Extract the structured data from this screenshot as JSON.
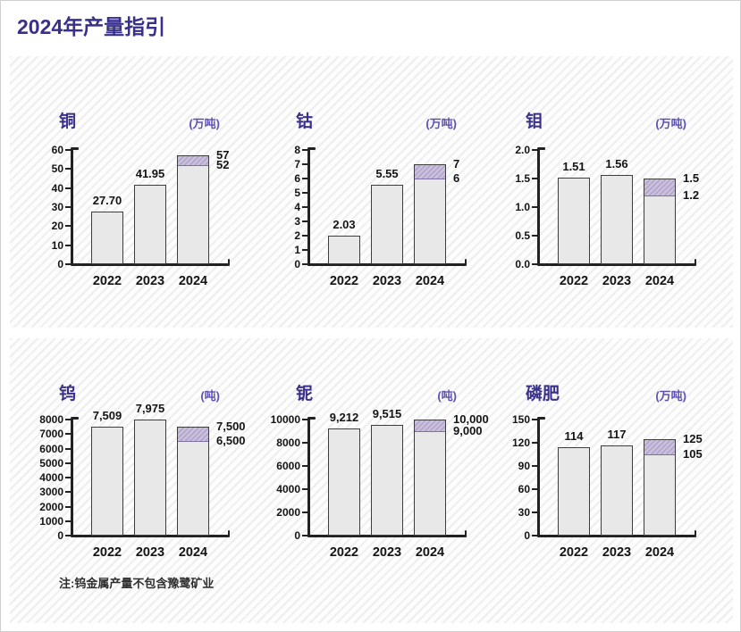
{
  "title": "2024年产量指引",
  "note": "注:钨金属产量不包含豫鹭矿业",
  "colors": {
    "title_purple": "#38308a",
    "unit_purple": "#5c51b0",
    "bar_fill": "#e9e8e8",
    "bar_border": "#3d3d3d",
    "band_fill": "#c9bedb",
    "band_hatch": "#a99cc6",
    "axis": "#222222"
  },
  "chart_data": [
    {
      "type": "bar",
      "name": "copper",
      "title": "铜",
      "unit": "(万吨)",
      "categories": [
        "2022",
        "2023",
        "2024"
      ],
      "ylim": [
        0,
        60
      ],
      "grid": false,
      "yticks": [
        {
          "v": 0,
          "t": "0"
        },
        {
          "v": 10,
          "t": "10"
        },
        {
          "v": 20,
          "t": "20"
        },
        {
          "v": 30,
          "t": "30"
        },
        {
          "v": 40,
          "t": "40"
        },
        {
          "v": 50,
          "t": "50"
        },
        {
          "v": 60,
          "t": "60"
        }
      ],
      "bars": [
        {
          "category": "2022",
          "value": 27.7,
          "label": "27.70"
        },
        {
          "category": "2023",
          "value": 41.95,
          "label": "41.95"
        },
        {
          "category": "2024",
          "range_low": 52,
          "range_high": 57,
          "low_label": "52",
          "high_label": "57"
        }
      ]
    },
    {
      "type": "bar",
      "name": "cobalt",
      "title": "钴",
      "unit": "(万吨)",
      "categories": [
        "2022",
        "2023",
        "2024"
      ],
      "ylim": [
        0,
        8
      ],
      "grid": false,
      "yticks": [
        {
          "v": 0,
          "t": "0"
        },
        {
          "v": 1,
          "t": "1"
        },
        {
          "v": 2,
          "t": "2"
        },
        {
          "v": 3,
          "t": "3"
        },
        {
          "v": 4,
          "t": "4"
        },
        {
          "v": 5,
          "t": "5"
        },
        {
          "v": 6,
          "t": "6"
        },
        {
          "v": 7,
          "t": "7"
        },
        {
          "v": 8,
          "t": "8"
        }
      ],
      "bars": [
        {
          "category": "2022",
          "value": 2.03,
          "label": "2.03"
        },
        {
          "category": "2023",
          "value": 5.55,
          "label": "5.55"
        },
        {
          "category": "2024",
          "range_low": 6,
          "range_high": 7,
          "low_label": "6",
          "high_label": "7"
        }
      ]
    },
    {
      "type": "bar",
      "name": "molybdenum",
      "title": "钼",
      "unit": "(万吨)",
      "categories": [
        "2022",
        "2023",
        "2024"
      ],
      "ylim": [
        0,
        2.0
      ],
      "grid": false,
      "yticks": [
        {
          "v": 0,
          "t": "0.0"
        },
        {
          "v": 0.5,
          "t": "0.5"
        },
        {
          "v": 1.0,
          "t": "1.0"
        },
        {
          "v": 1.5,
          "t": "1.5"
        },
        {
          "v": 2.0,
          "t": "2.0"
        }
      ],
      "bars": [
        {
          "category": "2022",
          "value": 1.51,
          "label": "1.51"
        },
        {
          "category": "2023",
          "value": 1.56,
          "label": "1.56"
        },
        {
          "category": "2024",
          "range_low": 1.2,
          "range_high": 1.5,
          "low_label": "1.2",
          "high_label": "1.5"
        }
      ]
    },
    {
      "type": "bar",
      "name": "tungsten",
      "title": "钨",
      "unit": "(吨)",
      "categories": [
        "2022",
        "2023",
        "2024"
      ],
      "ylim": [
        0,
        8000
      ],
      "grid": false,
      "yticks": [
        {
          "v": 0,
          "t": "0"
        },
        {
          "v": 1000,
          "t": "1000"
        },
        {
          "v": 2000,
          "t": "2000"
        },
        {
          "v": 3000,
          "t": "3000"
        },
        {
          "v": 4000,
          "t": "4000"
        },
        {
          "v": 5000,
          "t": "5000"
        },
        {
          "v": 6000,
          "t": "6000"
        },
        {
          "v": 7000,
          "t": "7000"
        },
        {
          "v": 8000,
          "t": "8000"
        }
      ],
      "bars": [
        {
          "category": "2022",
          "value": 7509,
          "label": "7,509"
        },
        {
          "category": "2023",
          "value": 7975,
          "label": "7,975"
        },
        {
          "category": "2024",
          "range_low": 6500,
          "range_high": 7500,
          "low_label": "6,500",
          "high_label": "7,500"
        }
      ]
    },
    {
      "type": "bar",
      "name": "niobium",
      "title": "铌",
      "unit": "(吨)",
      "categories": [
        "2022",
        "2023",
        "2024"
      ],
      "ylim": [
        0,
        10000
      ],
      "grid": false,
      "yticks": [
        {
          "v": 0,
          "t": "0"
        },
        {
          "v": 2000,
          "t": "2000"
        },
        {
          "v": 4000,
          "t": "4000"
        },
        {
          "v": 6000,
          "t": "6000"
        },
        {
          "v": 8000,
          "t": "8000"
        },
        {
          "v": 10000,
          "t": "10000"
        }
      ],
      "bars": [
        {
          "category": "2022",
          "value": 9212,
          "label": "9,212"
        },
        {
          "category": "2023",
          "value": 9515,
          "label": "9,515"
        },
        {
          "category": "2024",
          "range_low": 9000,
          "range_high": 10000,
          "low_label": "9,000",
          "high_label": "10,000"
        }
      ]
    },
    {
      "type": "bar",
      "name": "phosphate",
      "title": "磷肥",
      "unit": "(万吨)",
      "categories": [
        "2022",
        "2023",
        "2024"
      ],
      "ylim": [
        0,
        150
      ],
      "grid": false,
      "yticks": [
        {
          "v": 0,
          "t": "0"
        },
        {
          "v": 30,
          "t": "30"
        },
        {
          "v": 60,
          "t": "60"
        },
        {
          "v": 90,
          "t": "90"
        },
        {
          "v": 120,
          "t": "120"
        },
        {
          "v": 150,
          "t": "150"
        }
      ],
      "bars": [
        {
          "category": "2022",
          "value": 114,
          "label": "114"
        },
        {
          "category": "2023",
          "value": 117,
          "label": "117"
        },
        {
          "category": "2024",
          "range_low": 105,
          "range_high": 125,
          "low_label": "105",
          "high_label": "125"
        }
      ]
    }
  ]
}
